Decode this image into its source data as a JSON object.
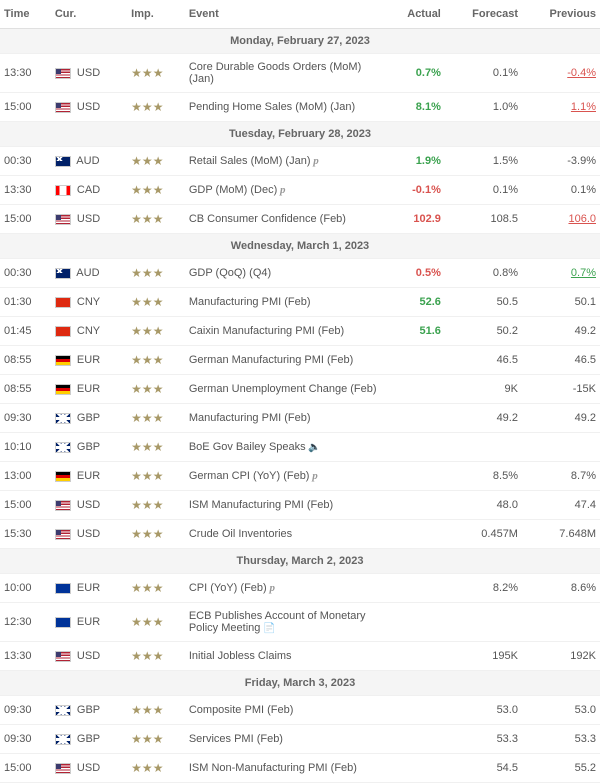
{
  "columns": {
    "time": "Time",
    "cur": "Cur.",
    "imp": "Imp.",
    "event": "Event",
    "actual": "Actual",
    "forecast": "Forecast",
    "previous": "Previous"
  },
  "days": [
    {
      "header": "Monday, February 27, 2023",
      "rows": [
        {
          "time": "13:30",
          "cur": "USD",
          "flag": "us",
          "imp": 3,
          "event": "Core Durable Goods Orders (MoM) (Jan)",
          "actual": "0.7%",
          "actual_cls": "actual-green",
          "forecast": "0.1%",
          "prev": "-0.4%",
          "prev_cls": "prev-red-u"
        },
        {
          "time": "15:00",
          "cur": "USD",
          "flag": "us",
          "imp": 3,
          "event": "Pending Home Sales (MoM) (Jan)",
          "actual": "8.1%",
          "actual_cls": "actual-green",
          "forecast": "1.0%",
          "prev": "1.1%",
          "prev_cls": "prev-red-u"
        }
      ]
    },
    {
      "header": "Tuesday, February 28, 2023",
      "rows": [
        {
          "time": "00:30",
          "cur": "AUD",
          "flag": "au",
          "imp": 3,
          "event": "Retail Sales (MoM) (Jan)",
          "p": true,
          "actual": "1.9%",
          "actual_cls": "actual-green",
          "forecast": "1.5%",
          "prev": "-3.9%"
        },
        {
          "time": "13:30",
          "cur": "CAD",
          "flag": "ca",
          "imp": 3,
          "event": "GDP (MoM) (Dec)",
          "p": true,
          "actual": "-0.1%",
          "actual_cls": "actual-red",
          "forecast": "0.1%",
          "prev": "0.1%"
        },
        {
          "time": "15:00",
          "cur": "USD",
          "flag": "us",
          "imp": 3,
          "event": "CB Consumer Confidence (Feb)",
          "actual": "102.9",
          "actual_cls": "actual-red",
          "forecast": "108.5",
          "prev": "106.0",
          "prev_cls": "prev-red-u"
        }
      ]
    },
    {
      "header": "Wednesday, March 1, 2023",
      "rows": [
        {
          "time": "00:30",
          "cur": "AUD",
          "flag": "au",
          "imp": 3,
          "event": "GDP (QoQ) (Q4)",
          "actual": "0.5%",
          "actual_cls": "actual-red",
          "forecast": "0.8%",
          "prev": "0.7%",
          "prev_cls": "prev-green-u"
        },
        {
          "time": "01:30",
          "cur": "CNY",
          "flag": "cn",
          "imp": 3,
          "event": "Manufacturing PMI (Feb)",
          "actual": "52.6",
          "actual_cls": "actual-green",
          "forecast": "50.5",
          "prev": "50.1"
        },
        {
          "time": "01:45",
          "cur": "CNY",
          "flag": "cn",
          "imp": 3,
          "event": "Caixin Manufacturing PMI (Feb)",
          "actual": "51.6",
          "actual_cls": "actual-green",
          "forecast": "50.2",
          "prev": "49.2"
        },
        {
          "time": "08:55",
          "cur": "EUR",
          "flag": "de",
          "imp": 3,
          "event": "German Manufacturing PMI (Feb)",
          "actual": "",
          "forecast": "46.5",
          "prev": "46.5"
        },
        {
          "time": "08:55",
          "cur": "EUR",
          "flag": "de",
          "imp": 3,
          "event": "German Unemployment Change (Feb)",
          "actual": "",
          "forecast": "9K",
          "prev": "-15K"
        },
        {
          "time": "09:30",
          "cur": "GBP",
          "flag": "gb",
          "imp": 3,
          "event": "Manufacturing PMI (Feb)",
          "actual": "",
          "forecast": "49.2",
          "prev": "49.2"
        },
        {
          "time": "10:10",
          "cur": "GBP",
          "flag": "gb",
          "imp": 3,
          "event": "BoE Gov Bailey Speaks",
          "speaker": true,
          "actual": "",
          "forecast": "",
          "prev": ""
        },
        {
          "time": "13:00",
          "cur": "EUR",
          "flag": "de",
          "imp": 3,
          "event": "German CPI (YoY) (Feb)",
          "p": true,
          "actual": "",
          "forecast": "8.5%",
          "prev": "8.7%"
        },
        {
          "time": "15:00",
          "cur": "USD",
          "flag": "us",
          "imp": 3,
          "event": "ISM Manufacturing PMI (Feb)",
          "actual": "",
          "forecast": "48.0",
          "prev": "47.4"
        },
        {
          "time": "15:30",
          "cur": "USD",
          "flag": "us",
          "imp": 3,
          "event": "Crude Oil Inventories",
          "actual": "",
          "forecast": "0.457M",
          "prev": "7.648M"
        }
      ]
    },
    {
      "header": "Thursday, March 2, 2023",
      "rows": [
        {
          "time": "10:00",
          "cur": "EUR",
          "flag": "eu",
          "imp": 3,
          "event": "CPI (YoY) (Feb)",
          "p": true,
          "actual": "",
          "forecast": "8.2%",
          "prev": "8.6%"
        },
        {
          "time": "12:30",
          "cur": "EUR",
          "flag": "eu",
          "imp": 3,
          "event": "ECB Publishes Account of Monetary Policy Meeting",
          "doc": true,
          "actual": "",
          "forecast": "",
          "prev": ""
        },
        {
          "time": "13:30",
          "cur": "USD",
          "flag": "us",
          "imp": 3,
          "event": "Initial Jobless Claims",
          "actual": "",
          "forecast": "195K",
          "prev": "192K"
        }
      ]
    },
    {
      "header": "Friday, March 3, 2023",
      "rows": [
        {
          "time": "09:30",
          "cur": "GBP",
          "flag": "gb",
          "imp": 3,
          "event": "Composite PMI (Feb)",
          "actual": "",
          "forecast": "53.0",
          "prev": "53.0"
        },
        {
          "time": "09:30",
          "cur": "GBP",
          "flag": "gb",
          "imp": 3,
          "event": "Services PMI (Feb)",
          "actual": "",
          "forecast": "53.3",
          "prev": "53.3"
        },
        {
          "time": "15:00",
          "cur": "USD",
          "flag": "us",
          "imp": 3,
          "event": "ISM Non-Manufacturing PMI (Feb)",
          "actual": "",
          "forecast": "54.5",
          "prev": "55.2"
        }
      ]
    }
  ]
}
